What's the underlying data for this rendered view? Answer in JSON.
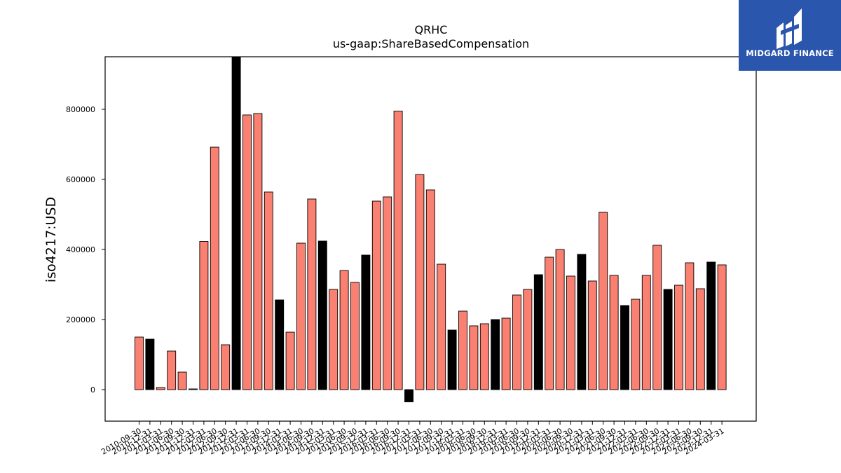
{
  "chart_data": {
    "type": "bar",
    "title": "QRHC",
    "subtitle": "us-gaap:ShareBasedCompensation",
    "ylabel": "iso4217:USD",
    "xlabel": "",
    "ylim": [
      -90000,
      950000
    ],
    "yticks": [
      0,
      200000,
      400000,
      600000,
      800000
    ],
    "yticklabels": [
      "0",
      "200000",
      "400000",
      "600000",
      "800000"
    ],
    "grid": false,
    "colors": {
      "quarter": "#fa8072",
      "year_end": "#000000"
    },
    "categories": [
      "2010-09-30",
      "2010-12-31",
      "2011-03-31",
      "2011-06-30",
      "2011-09-30",
      "2011-12-31",
      "2012-03-31",
      "2012-06-30",
      "2012-09-30",
      "2012-12-31",
      "2013-03-31",
      "2013-06-30",
      "2013-09-30",
      "2013-12-31",
      "2014-03-31",
      "2014-06-30",
      "2014-09-30",
      "2014-12-31",
      "2015-03-31",
      "2015-06-30",
      "2015-09-30",
      "2015-12-31",
      "2016-03-31",
      "2016-06-30",
      "2016-09-30",
      "2016-12-31",
      "2017-03-31",
      "2017-06-30",
      "2017-09-30",
      "2017-12-31",
      "2018-03-31",
      "2018-06-30",
      "2018-09-30",
      "2018-12-31",
      "2019-03-31",
      "2019-06-30",
      "2019-09-30",
      "2019-12-31",
      "2020-03-31",
      "2020-06-30",
      "2020-09-30",
      "2020-12-31",
      "2021-03-31",
      "2021-06-30",
      "2021-09-30",
      "2021-12-31",
      "2022-03-31",
      "2022-06-30",
      "2022-09-30",
      "2022-12-31",
      "2023-03-31",
      "2023-06-30",
      "2023-09-30",
      "2023-12-31",
      "2024-03-31"
    ],
    "values": [
      150000,
      144000,
      6000,
      110000,
      50000,
      2000,
      423000,
      692000,
      128000,
      960000,
      784000,
      788000,
      564000,
      256000,
      164000,
      418000,
      544000,
      424000,
      286000,
      340000,
      306000,
      384000,
      538000,
      550000,
      795000,
      -35000,
      614000,
      570000,
      358000,
      170000,
      224000,
      182000,
      188000,
      200000,
      204000,
      270000,
      286000,
      328000,
      378000,
      400000,
      324000,
      386000,
      310000,
      506000,
      326000,
      240000,
      258000,
      326000,
      412000,
      286000,
      298000,
      362000,
      288000,
      364000,
      356000
    ],
    "year_end": [
      false,
      true,
      false,
      false,
      false,
      false,
      false,
      false,
      false,
      true,
      false,
      false,
      false,
      true,
      false,
      false,
      false,
      true,
      false,
      false,
      false,
      true,
      false,
      false,
      false,
      true,
      false,
      false,
      false,
      true,
      false,
      false,
      false,
      true,
      false,
      false,
      false,
      true,
      false,
      false,
      false,
      true,
      false,
      false,
      false,
      true,
      false,
      false,
      false,
      true,
      false,
      false,
      false,
      true,
      false
    ]
  },
  "logo": {
    "text": "MIDGARD FINANCE",
    "color": "#2a56ad"
  }
}
